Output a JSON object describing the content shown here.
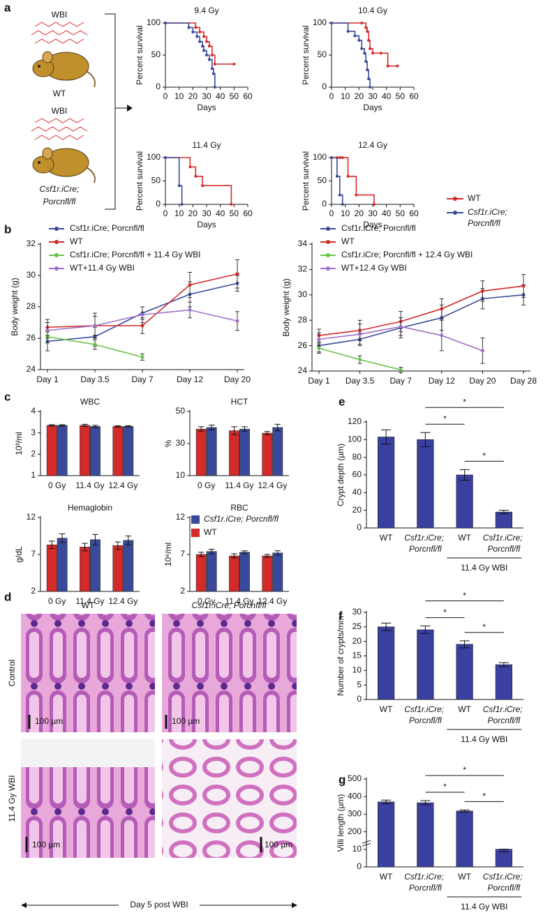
{
  "figure": {
    "panels": [
      "a",
      "b",
      "c",
      "d",
      "e",
      "f",
      "g"
    ],
    "schematic": {
      "wbi": [
        "WBI",
        "WBI"
      ],
      "wt": "WT",
      "ko": [
        "Csf1r.iCre;",
        "Porcnfl/fl"
      ]
    },
    "histology": {
      "columns": [
        "WT",
        "Csf1r.iCre; Porcnfl/fl"
      ],
      "rows": [
        "Control",
        "11.4 Gy WBI"
      ],
      "scale_bars": [
        "100 µm",
        "100 µm",
        "100 µm",
        "100 µm"
      ],
      "caption": "Day 5 post WBI"
    }
  },
  "chart_data": [
    {
      "type": "step",
      "title": "9.4 Gy",
      "xlabel": "Days",
      "ylabel": "Percent survival",
      "xlim": [
        0,
        60
      ],
      "xticks": [
        0,
        10,
        20,
        30,
        40,
        50,
        60
      ],
      "ylim": [
        0,
        100
      ],
      "yticks": [
        0,
        50,
        100
      ],
      "series": [
        {
          "color": "#d42a2a",
          "x": [
            0,
            22,
            25,
            28,
            30,
            32,
            34,
            36,
            50
          ],
          "values": [
            100,
            93,
            86,
            79,
            71,
            64,
            50,
            36,
            36
          ]
        },
        {
          "color": "#3a4a9a",
          "x": [
            0,
            17,
            20,
            23,
            25,
            27,
            28,
            30,
            32,
            34,
            35,
            36
          ],
          "values": [
            100,
            93,
            86,
            79,
            71,
            64,
            57,
            50,
            43,
            29,
            21,
            0
          ]
        }
      ]
    },
    {
      "type": "step",
      "title": "10.4 Gy",
      "xlabel": "Days",
      "ylabel": "Percent survival",
      "xlim": [
        0,
        60
      ],
      "xticks": [
        0,
        10,
        20,
        30,
        40,
        50,
        60
      ],
      "ylim": [
        0,
        100
      ],
      "yticks": [
        0,
        50,
        100
      ],
      "series": [
        {
          "color": "#d42a2a",
          "x": [
            0,
            22,
            25,
            26,
            27,
            28,
            30,
            36,
            41,
            48
          ],
          "values": [
            100,
            100,
            93,
            87,
            73,
            60,
            53,
            53,
            33,
            33
          ]
        },
        {
          "color": "#3a4a9a",
          "x": [
            0,
            12,
            17,
            20,
            22,
            24,
            25,
            26,
            27,
            28
          ],
          "values": [
            100,
            87,
            80,
            73,
            60,
            53,
            40,
            27,
            13,
            0
          ]
        }
      ]
    },
    {
      "type": "step",
      "title": "11.4 Gy",
      "xlabel": "Days",
      "ylabel": "Percent survival",
      "xlim": [
        0,
        60
      ],
      "xticks": [
        0,
        10,
        20,
        30,
        40,
        50,
        60
      ],
      "ylim": [
        0,
        100
      ],
      "yticks": [
        0,
        50,
        100
      ],
      "series": [
        {
          "color": "#d42a2a",
          "x": [
            0,
            18,
            22,
            27,
            48
          ],
          "values": [
            100,
            80,
            60,
            40,
            0
          ]
        },
        {
          "color": "#3a4a9a",
          "x": [
            0,
            10,
            12
          ],
          "values": [
            100,
            40,
            0
          ]
        }
      ]
    },
    {
      "type": "step",
      "title": "12.4 Gy",
      "xlabel": "Days",
      "ylabel": "Percent survival",
      "xlim": [
        0,
        60
      ],
      "xticks": [
        0,
        10,
        20,
        30,
        40,
        50,
        60
      ],
      "ylim": [
        0,
        100
      ],
      "yticks": [
        0,
        50,
        100
      ],
      "legend": "right",
      "series": [
        {
          "name": "WT",
          "color": "#d42a2a",
          "x": [
            0,
            4,
            6,
            8,
            12,
            18,
            31
          ],
          "values": [
            100,
            100,
            100,
            100,
            60,
            20,
            0
          ]
        },
        {
          "name": "Csf1r.iCre; Porcnfl/fl",
          "color": "#3a4a9a",
          "x": [
            0,
            4,
            6,
            8
          ],
          "values": [
            100,
            60,
            20,
            0
          ]
        }
      ]
    },
    {
      "type": "line",
      "ylabel": "Body weight (g)",
      "categories": [
        "Day 1",
        "Day 3.5",
        "Day 7",
        "Day 12",
        "Day 20"
      ],
      "ylim": [
        24,
        32
      ],
      "yticks": [
        24,
        26,
        28,
        30,
        32
      ],
      "legend": "top",
      "series": [
        {
          "name": "Csf1r.iCre; Porcnfl/fl",
          "color": "#3a4a9a",
          "values": [
            25.8,
            26.1,
            27.6,
            28.8,
            29.5
          ],
          "errors": [
            0.6,
            0.6,
            0.4,
            0.8,
            0.5
          ]
        },
        {
          "name": "WT",
          "color": "#d42a2a",
          "values": [
            26.7,
            26.8,
            26.8,
            29.4,
            30.1
          ],
          "errors": [
            0.5,
            0.8,
            0.5,
            0.8,
            0.9
          ]
        },
        {
          "name": "Csf1r.iCre; Porcnfl/fl + 11.4 Gy WBI",
          "color": "#6ac24a",
          "values": [
            26.1,
            25.6,
            24.8,
            null,
            null
          ],
          "errors": [
            0.4,
            0.3,
            0.2,
            null,
            null
          ]
        },
        {
          "name": "WT+11.4 Gy WBI",
          "color": "#a070c8",
          "values": [
            26.5,
            26.8,
            27.5,
            27.8,
            27.1
          ],
          "errors": [
            0.5,
            0.6,
            0.5,
            0.5,
            0.6
          ]
        }
      ]
    },
    {
      "type": "line",
      "ylabel": "Body weight (g)",
      "categories": [
        "Day 1",
        "Day 3.5",
        "Day 7",
        "Day 12",
        "Day 20",
        "Day 28"
      ],
      "ylim": [
        24,
        34
      ],
      "yticks": [
        24,
        26,
        28,
        30,
        32,
        34
      ],
      "legend": "top",
      "series": [
        {
          "name": "Csf1r.iCre; Porcnfl/fl",
          "color": "#3a4a9a",
          "values": [
            26.0,
            26.5,
            27.4,
            28.2,
            29.7,
            30.0
          ],
          "errors": [
            0.5,
            0.5,
            0.8,
            1.0,
            0.8,
            0.8
          ]
        },
        {
          "name": "WT",
          "color": "#d42a2a",
          "values": [
            26.8,
            27.2,
            27.9,
            28.9,
            30.3,
            30.7
          ],
          "errors": [
            0.5,
            0.8,
            0.8,
            0.8,
            0.8,
            0.9
          ]
        },
        {
          "name": "Csf1r.iCre; Porcnfl/fl + 12.4 Gy WBI",
          "color": "#6ac24a",
          "values": [
            25.8,
            24.9,
            24.1,
            null,
            null,
            null
          ],
          "errors": [
            0.4,
            0.3,
            0.2,
            null,
            null,
            null
          ]
        },
        {
          "name": "WT+12.4 Gy WBI",
          "color": "#a070c8",
          "values": [
            26.5,
            26.9,
            27.5,
            26.8,
            25.6,
            null
          ],
          "errors": [
            0.5,
            0.8,
            0.7,
            1.2,
            1.0,
            null
          ]
        }
      ]
    },
    {
      "type": "bar",
      "title": "WBC",
      "ylabel": "10³/ml",
      "categories": [
        "0 Gy",
        "11.4 Gy",
        "12.4 Gy"
      ],
      "ylim": [
        1,
        4
      ],
      "yticks": [
        1,
        2,
        3,
        4
      ],
      "series": [
        {
          "color": "#d42a2a",
          "values": [
            3.35,
            3.35,
            3.3
          ],
          "errors": [
            0.03,
            0.05,
            0.03
          ]
        },
        {
          "color": "#3a4a9a",
          "values": [
            3.35,
            3.3,
            3.3
          ],
          "errors": [
            0.03,
            0.05,
            0.03
          ]
        }
      ]
    },
    {
      "type": "bar",
      "title": "HCT",
      "ylabel": "%",
      "categories": [
        "0 Gy",
        "11.4 Gy",
        "12.4 Gy"
      ],
      "ylim": [
        10,
        50
      ],
      "yticks": [
        10,
        30,
        50
      ],
      "series": [
        {
          "color": "#d42a2a",
          "values": [
            39,
            38,
            36.5
          ],
          "errors": [
            1.5,
            2.5,
            1
          ]
        },
        {
          "color": "#3a4a9a",
          "values": [
            40,
            39,
            40
          ],
          "errors": [
            1.5,
            1.5,
            2
          ]
        }
      ]
    },
    {
      "type": "bar",
      "title": "Hemaglobin",
      "ylabel": "g/dL",
      "categories": [
        "0 Gy",
        "11.4 Gy",
        "12.4 Gy"
      ],
      "ylim": [
        2,
        12
      ],
      "yticks": [
        2,
        7,
        12
      ],
      "series": [
        {
          "color": "#d42a2a",
          "values": [
            8.3,
            8,
            8.2
          ],
          "errors": [
            0.5,
            0.5,
            0.5
          ]
        },
        {
          "color": "#3a4a9a",
          "values": [
            9.2,
            9,
            8.9
          ],
          "errors": [
            0.6,
            0.7,
            0.6
          ]
        }
      ]
    },
    {
      "type": "bar",
      "title": "RBC",
      "ylabel": "10⁶/ml",
      "categories": [
        "0 Gy",
        "11.4 Gy",
        "12.4 Gy"
      ],
      "ylim": [
        2,
        12
      ],
      "yticks": [
        2,
        7,
        12
      ],
      "legend": "top",
      "series": [
        {
          "name": "WT",
          "color": "#d42a2a",
          "values": [
            7,
            6.8,
            6.8
          ],
          "errors": [
            0.3,
            0.3,
            0.2
          ]
        },
        {
          "name": "Csf1r.iCre; Porcnfl/fl",
          "color": "#3a4a9a",
          "values": [
            7.4,
            7.3,
            7.2
          ],
          "errors": [
            0.3,
            0.2,
            0.3
          ]
        }
      ]
    },
    {
      "type": "bar",
      "ylabel": "Crypt depth (µm)",
      "categories": [
        "WT",
        "Csf1r.iCre; Porcnfl/fl",
        "WT",
        "Csf1r.iCre; Porcnfl/fl"
      ],
      "ylim": [
        0,
        120
      ],
      "yticks": [
        0,
        20,
        40,
        60,
        80,
        100,
        120
      ],
      "group": {
        "label": "11.4 Gy WBI",
        "from": 2,
        "to": 3
      },
      "comparisons": [
        {
          "from": 1,
          "to": 3,
          "label": "*"
        },
        {
          "from": 1,
          "to": 2,
          "label": "*"
        },
        {
          "from": 2,
          "to": 3,
          "label": "*"
        }
      ],
      "series": [
        {
          "color": "#3a3fa0",
          "values": [
            103,
            100,
            60,
            18
          ],
          "errors": [
            8,
            8,
            6,
            2
          ]
        }
      ]
    },
    {
      "type": "bar",
      "ylabel": "Number of crypts/mm",
      "categories": [
        "WT",
        "Csf1r.iCre; Porcnfl/fl",
        "WT",
        "Csf1r.iCre; Porcnfl/fl"
      ],
      "ylim": [
        0,
        30
      ],
      "yticks": [
        0,
        5,
        10,
        15,
        20,
        25,
        30
      ],
      "group": {
        "label": "11.4 Gy WBI",
        "from": 2,
        "to": 3
      },
      "comparisons": [
        {
          "from": 1,
          "to": 3,
          "label": "*"
        },
        {
          "from": 1,
          "to": 2,
          "label": "*"
        },
        {
          "from": 2,
          "to": 3,
          "label": "*"
        }
      ],
      "series": [
        {
          "color": "#3a3fa0",
          "values": [
            25,
            24,
            19,
            12
          ],
          "errors": [
            1.3,
            1.3,
            1.2,
            0.7
          ]
        }
      ]
    },
    {
      "type": "bar",
      "ylabel": "Villi length (µm)",
      "categories": [
        "WT",
        "Csf1r.iCre; Porcnfl/fl",
        "WT",
        "Csf1r.iCre; Porcnfl/fl"
      ],
      "ylim": [
        0,
        500
      ],
      "yticks": [
        0,
        10,
        200,
        300,
        400,
        500
      ],
      "yscale": "broken",
      "group": {
        "label": "11.4 Gy WBI",
        "from": 2,
        "to": 3
      },
      "comparisons": [
        {
          "from": 1,
          "to": 3,
          "label": "*"
        },
        {
          "from": 1,
          "to": 2,
          "label": "*"
        },
        {
          "from": 2,
          "to": 3,
          "label": "*"
        }
      ],
      "series": [
        {
          "color": "#3a3fa0",
          "values": [
            370,
            365,
            318,
            10
          ],
          "errors": [
            10,
            12,
            6,
            1.5
          ]
        }
      ]
    }
  ]
}
